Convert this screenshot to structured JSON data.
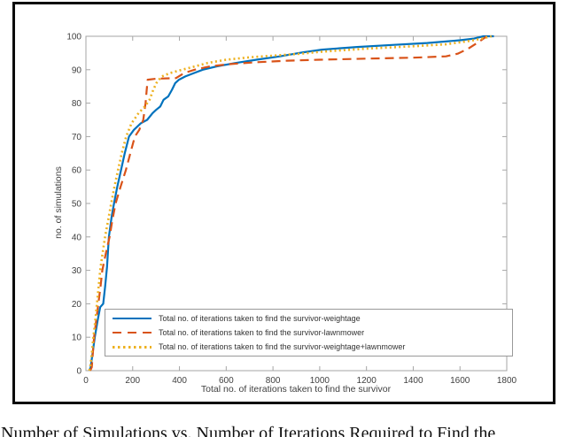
{
  "figure": {
    "caption": "Number of Simulations vs. Number of Iterations Required to Find the"
  },
  "chart_data": {
    "type": "line",
    "title": "",
    "xlabel": "Total no. of iterations taken to find the survivor",
    "ylabel": "no. of simulations",
    "xlim": [
      0,
      1800
    ],
    "ylim": [
      0,
      100
    ],
    "x_ticks": [
      0,
      200,
      400,
      600,
      800,
      1000,
      1200,
      1400,
      1600,
      1800
    ],
    "y_ticks": [
      0,
      10,
      20,
      30,
      40,
      50,
      60,
      70,
      80,
      90,
      100
    ],
    "grid": false,
    "legend_position": "inside lower right",
    "axis_color": "#a6a6a6",
    "tick_label_color": "#404040",
    "series": [
      {
        "name": "weightage",
        "label": "Total no. of iterations taken to find the survivor-weightage",
        "color": "#0072BD",
        "line_style": "solid",
        "points": [
          [
            15,
            0
          ],
          [
            20,
            1
          ],
          [
            28,
            5
          ],
          [
            38,
            10
          ],
          [
            50,
            15
          ],
          [
            61,
            19
          ],
          [
            74,
            20
          ],
          [
            82,
            25
          ],
          [
            90,
            31
          ],
          [
            98,
            40
          ],
          [
            110,
            46
          ],
          [
            120,
            50
          ],
          [
            134,
            55
          ],
          [
            150,
            60
          ],
          [
            166,
            65
          ],
          [
            184,
            70
          ],
          [
            205,
            72
          ],
          [
            235,
            74
          ],
          [
            262,
            75
          ],
          [
            285,
            77
          ],
          [
            300,
            78
          ],
          [
            318,
            79
          ],
          [
            332,
            81
          ],
          [
            352,
            82
          ],
          [
            368,
            84
          ],
          [
            382,
            86
          ],
          [
            398,
            87
          ],
          [
            425,
            88
          ],
          [
            462,
            89
          ],
          [
            500,
            90
          ],
          [
            560,
            91
          ],
          [
            640,
            92
          ],
          [
            730,
            93
          ],
          [
            830,
            94
          ],
          [
            930,
            95.2
          ],
          [
            1010,
            96
          ],
          [
            1160,
            96.8
          ],
          [
            1310,
            97.4
          ],
          [
            1460,
            98
          ],
          [
            1600,
            98.8
          ],
          [
            1660,
            99.3
          ],
          [
            1700,
            100
          ],
          [
            1745,
            100
          ]
        ]
      },
      {
        "name": "lawnmower",
        "label": "Total no. of iterations taken to find the survivor-lawnmower",
        "color": "#D95319",
        "line_style": "dashed",
        "points": [
          [
            18,
            0
          ],
          [
            25,
            1
          ],
          [
            35,
            10
          ],
          [
            44,
            15
          ],
          [
            53,
            20
          ],
          [
            62,
            25
          ],
          [
            70,
            30
          ],
          [
            85,
            35
          ],
          [
            101,
            40
          ],
          [
            113,
            45
          ],
          [
            127,
            50
          ],
          [
            148,
            55
          ],
          [
            171,
            60
          ],
          [
            190,
            65
          ],
          [
            209,
            70
          ],
          [
            228,
            72
          ],
          [
            245,
            75
          ],
          [
            255,
            80
          ],
          [
            260,
            84
          ],
          [
            264,
            87
          ],
          [
            300,
            87.3
          ],
          [
            385,
            87.5
          ],
          [
            420,
            89
          ],
          [
            465,
            90
          ],
          [
            530,
            91
          ],
          [
            620,
            91.7
          ],
          [
            720,
            92.2
          ],
          [
            860,
            92.7
          ],
          [
            1000,
            93
          ],
          [
            1200,
            93.3
          ],
          [
            1400,
            93.6
          ],
          [
            1540,
            94
          ],
          [
            1590,
            94.8
          ],
          [
            1635,
            96.3
          ],
          [
            1680,
            98.3
          ],
          [
            1715,
            100
          ]
        ]
      },
      {
        "name": "weightage-plus-lawnmower",
        "label": "Total no. of iterations taken to find the survivor-weightage+lawnmower",
        "color": "#EDB120",
        "line_style": "dotted",
        "points": [
          [
            14,
            0
          ],
          [
            18,
            1
          ],
          [
            25,
            5
          ],
          [
            32,
            10
          ],
          [
            40,
            15
          ],
          [
            47,
            20
          ],
          [
            54,
            25
          ],
          [
            61,
            30
          ],
          [
            71,
            35
          ],
          [
            82,
            40
          ],
          [
            95,
            45
          ],
          [
            108,
            50
          ],
          [
            122,
            55
          ],
          [
            137,
            60
          ],
          [
            153,
            65
          ],
          [
            172,
            70
          ],
          [
            195,
            74
          ],
          [
            225,
            77
          ],
          [
            252,
            79
          ],
          [
            272,
            81
          ],
          [
            288,
            84
          ],
          [
            305,
            86.5
          ],
          [
            325,
            88
          ],
          [
            360,
            89
          ],
          [
            400,
            89.8
          ],
          [
            450,
            90.7
          ],
          [
            520,
            92
          ],
          [
            600,
            93
          ],
          [
            700,
            93.7
          ],
          [
            800,
            94.2
          ],
          [
            920,
            94.8
          ],
          [
            1010,
            95.4
          ],
          [
            1200,
            96.3
          ],
          [
            1400,
            97
          ],
          [
            1540,
            97.6
          ],
          [
            1640,
            98.6
          ],
          [
            1700,
            99.4
          ],
          [
            1735,
            100
          ]
        ]
      }
    ]
  }
}
